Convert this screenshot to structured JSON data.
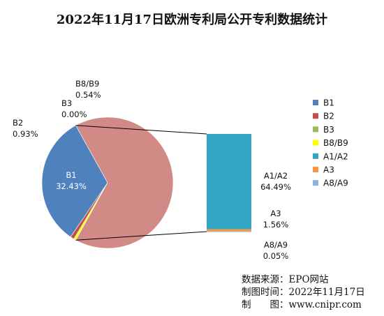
{
  "chart_data": {
    "type": "bar-of-pie",
    "title": "2022年11月17日欧洲专利局公开专利数据统计",
    "categories": [
      "B1",
      "B2",
      "B3",
      "B8/B9",
      "A1/A2",
      "A3",
      "A8/A9"
    ],
    "values": [
      32.43,
      0.93,
      0.0,
      0.54,
      64.49,
      1.56,
      0.05
    ],
    "value_labels": [
      "32.43%",
      "0.93%",
      "0.00%",
      "0.54%",
      "64.49%",
      "1.56%",
      "0.05%"
    ],
    "pie_categories": [
      "B1",
      "B2",
      "B3",
      "B8/B9"
    ],
    "other_categories": [
      "A1/A2",
      "A3",
      "A8/A9"
    ],
    "other_pie_color": "#d28a86",
    "colors": [
      "#4f81bd",
      "#c0504d",
      "#9bbb59",
      "#ffff00",
      "#31a5c1",
      "#f79646",
      "#8db3e2"
    ],
    "legend_position": "right"
  },
  "source": {
    "line1_label": "数据来源：",
    "line1_value": "EPO网站",
    "line2_label": "制图时间：",
    "line2_value": "2022年11月17日",
    "line3_label": "制　　图：",
    "line3_value": "www.cnipr.com"
  }
}
